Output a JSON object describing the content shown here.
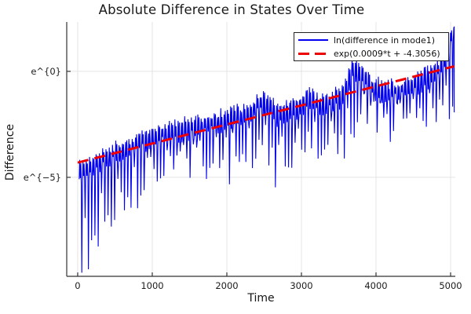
{
  "chart_data": {
    "type": "line",
    "title": "Absolute Difference in States Over Time",
    "xlabel": "Time",
    "ylabel": "Difference",
    "xlim": [
      -147,
      5063
    ],
    "ylim": [
      -9.67,
      2.33
    ],
    "x_tick_labels": [
      "0",
      "1000",
      "2000",
      "3000",
      "4000",
      "5000"
    ],
    "x_tick_values": [
      0,
      1000,
      2000,
      3000,
      4000,
      5000
    ],
    "y_ticks": [
      {
        "label": "e^{0}",
        "value": 0
      },
      {
        "label": "e^{−5}",
        "value": -5
      }
    ],
    "grid": true,
    "grid_color": "#e4e4e4",
    "spine_color": "#333333",
    "tick_text_color": "#1c1c1c",
    "legend_position": "top-right",
    "series": [
      {
        "name": "ln(difference in mode1)",
        "color": "#0000ee",
        "line_style": "solid",
        "kind": "oscillatory-log-difference",
        "oscillation_period": 44,
        "t_range": [
          16,
          5048
        ],
        "envelope_top": [
          [
            0,
            -4.6
          ],
          [
            150,
            -4.25
          ],
          [
            350,
            -3.8
          ],
          [
            600,
            -3.45
          ],
          [
            900,
            -2.95
          ],
          [
            1200,
            -2.6
          ],
          [
            1500,
            -2.4
          ],
          [
            1800,
            -2.15
          ],
          [
            2050,
            -1.95
          ],
          [
            2300,
            -1.75
          ],
          [
            2430,
            -1.15
          ],
          [
            2550,
            -1.25
          ],
          [
            2680,
            -1.75
          ],
          [
            2820,
            -1.6
          ],
          [
            3000,
            -1.3
          ],
          [
            3100,
            -1.0
          ],
          [
            3250,
            -1.3
          ],
          [
            3420,
            -1.15
          ],
          [
            3560,
            -0.8
          ],
          [
            3700,
            0.45
          ],
          [
            3850,
            -0.15
          ],
          [
            4000,
            -0.55
          ],
          [
            4180,
            -0.7
          ],
          [
            4330,
            -0.6
          ],
          [
            4480,
            -0.4
          ],
          [
            4620,
            -0.1
          ],
          [
            4760,
            0.15
          ],
          [
            4880,
            0.5
          ],
          [
            4970,
            1.2
          ],
          [
            5030,
            2.15
          ],
          [
            5050,
            2.0
          ]
        ],
        "envelope_bottom": [
          [
            0,
            -9.3
          ],
          [
            80,
            -9.0
          ],
          [
            200,
            -7.8
          ],
          [
            350,
            -7.0
          ],
          [
            550,
            -6.2
          ],
          [
            800,
            -5.4
          ],
          [
            1000,
            -4.9
          ],
          [
            1200,
            -4.6
          ],
          [
            1500,
            -4.15
          ],
          [
            1800,
            -3.95
          ],
          [
            2100,
            -3.65
          ],
          [
            2400,
            -3.3
          ],
          [
            2700,
            -4.25
          ],
          [
            2900,
            -3.85
          ],
          [
            3100,
            -3.45
          ],
          [
            3400,
            -3.3
          ],
          [
            3650,
            -2.7
          ],
          [
            3800,
            -1.9
          ],
          [
            3950,
            -2.15
          ],
          [
            4150,
            -2.3
          ],
          [
            4400,
            -2.1
          ],
          [
            4650,
            -1.95
          ],
          [
            4850,
            -1.8
          ],
          [
            5000,
            -2.0
          ],
          [
            5050,
            -1.4
          ]
        ]
      },
      {
        "name": "exp(0.0009*t + -4.3056)",
        "color": "#ee0000",
        "line_style": "dashed",
        "kind": "exponential-fit-line",
        "fit": {
          "slope": 0.0009,
          "intercept": -4.3056
        },
        "t_range": [
          0,
          5050
        ]
      }
    ]
  }
}
